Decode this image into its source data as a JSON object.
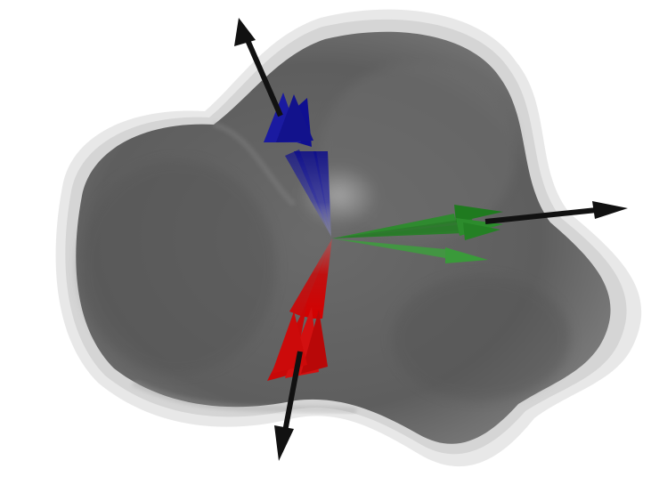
{
  "scene": {
    "background": "#ffffff",
    "body_color": "#5c5c5c",
    "halo_color": "#d6d6d6",
    "axes": [
      {
        "name": "axis-blue",
        "color": "#1a1a8c"
      },
      {
        "name": "axis-green",
        "color": "#2a7a2a"
      },
      {
        "name": "axis-red",
        "color": "#c01010"
      },
      {
        "name": "axis-black",
        "color": "#111111"
      }
    ]
  }
}
